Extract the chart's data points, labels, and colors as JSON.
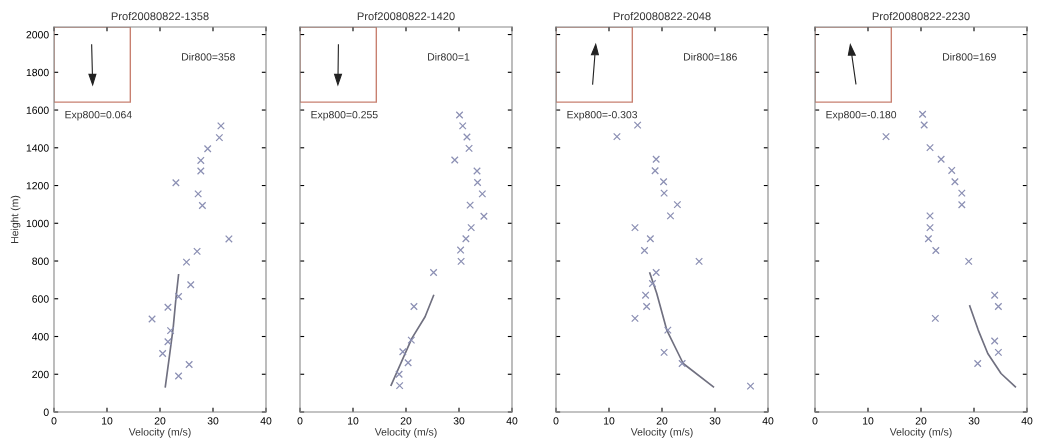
{
  "chart_data": [
    {
      "type": "scatter",
      "title": "Prof20080822-1358",
      "xlabel": "Velocity (m/s)",
      "ylabel": "Height (m)",
      "annotations": [
        "Dir800=358",
        "Exp800=0.064"
      ],
      "xlim": [
        0,
        40
      ],
      "ylim": [
        0,
        2040
      ],
      "xticks": [
        0,
        10,
        20,
        30,
        40
      ],
      "yticks": [
        0,
        200,
        400,
        600,
        800,
        1000,
        1200,
        1400,
        1600,
        1800,
        2000
      ],
      "grid": false,
      "series": [
        {
          "marker": "cross",
          "color": "#8c90b4",
          "x": [
            31.5,
            31.2,
            29,
            27.7,
            27.7,
            23,
            27.2,
            28,
            33,
            27,
            25,
            25.8,
            23.5,
            21.5,
            18.5,
            22,
            21.5,
            20.5,
            25.5,
            23.5
          ],
          "values": [
            1516,
            1454,
            1395,
            1333,
            1277,
            1215,
            1156,
            1094,
            917,
            851,
            794,
            674,
            612,
            555,
            493,
            431,
            372,
            310,
            252,
            191
          ]
        },
        {
          "type": "line",
          "color": "#707080",
          "x": [
            21,
            21.8,
            22.5,
            23,
            23.5
          ],
          "values": [
            133,
            300,
            450,
            600,
            727
          ]
        }
      ]
    },
    {
      "type": "scatter",
      "title": "Prof20080822-1420",
      "xlabel": "Velocity (m/s)",
      "annotations": [
        "Dir800=1",
        "Exp800=0.255"
      ],
      "xlim": [
        0,
        40
      ],
      "ylim": [
        0,
        2040
      ],
      "xticks": [
        0,
        10,
        20,
        30,
        40
      ],
      "yticks": [
        0,
        200,
        400,
        600,
        800,
        1000,
        1200,
        1400,
        1600,
        1800,
        2000
      ],
      "tick_labels": "x",
      "grid": false,
      "series": [
        {
          "marker": "cross",
          "color": "#8c90b4",
          "x": [
            30.1,
            30.7,
            31.5,
            31.9,
            29.2,
            33.4,
            33.5,
            34.4,
            32.1,
            34.7,
            32.3,
            31.3,
            30.3,
            30.4,
            25.2,
            21.5,
            21,
            19.4,
            20.4,
            18.7,
            18.8
          ],
          "values": [
            1574,
            1516,
            1457,
            1397,
            1335,
            1277,
            1216,
            1156,
            1096,
            1037,
            977,
            918,
            858,
            798,
            739,
            559,
            381,
            319,
            261,
            200,
            140
          ]
        },
        {
          "type": "line",
          "color": "#707080",
          "x": [
            17.2,
            21.1,
            23.6,
            25.2
          ],
          "values": [
            142,
            390,
            505,
            617
          ]
        }
      ]
    },
    {
      "type": "scatter",
      "title": "Prof20080822-2048",
      "xlabel": "Velocity (m/s)",
      "annotations": [
        "Dir800=186",
        "Exp800=-0.303"
      ],
      "xlim": [
        0,
        40
      ],
      "ylim": [
        0,
        2040
      ],
      "xticks": [
        0,
        10,
        20,
        30,
        40
      ],
      "yticks": [
        0,
        200,
        400,
        600,
        800,
        1000,
        1200,
        1400,
        1600,
        1800,
        2000
      ],
      "tick_labels": "x",
      "grid": false,
      "series": [
        {
          "marker": "cross",
          "color": "#8c90b4",
          "x": [
            15.4,
            11.5,
            18.9,
            18.7,
            20.3,
            20.4,
            22.9,
            21.6,
            14.9,
            17.8,
            16.7,
            27,
            18.9,
            18.2,
            16.9,
            17.1,
            14.9,
            21.1,
            20.4,
            23.8,
            36.7
          ],
          "values": [
            1520,
            1459,
            1339,
            1278,
            1220,
            1160,
            1099,
            1039,
            977,
            918,
            856,
            798,
            739,
            681,
            619,
            559,
            496,
            434,
            316,
            257,
            137
          ]
        },
        {
          "type": "line",
          "color": "#707080",
          "x": [
            17.7,
            19,
            20.9,
            24,
            29.7
          ],
          "values": [
            736,
            629,
            434,
            257,
            133
          ]
        }
      ]
    },
    {
      "type": "scatter",
      "title": "Prof20080822-2230",
      "xlabel": "Velocity (m/s)",
      "annotations": [
        "Dir800=169",
        "Exp800=-0.180"
      ],
      "xlim": [
        0,
        40
      ],
      "ylim": [
        0,
        2040
      ],
      "xticks": [
        0,
        10,
        20,
        30,
        40
      ],
      "yticks": [
        0,
        200,
        400,
        600,
        800,
        1000,
        1200,
        1400,
        1600,
        1800,
        2000
      ],
      "tick_labels": "x",
      "grid": false,
      "series": [
        {
          "marker": "cross",
          "color": "#8c90b4",
          "x": [
            20.3,
            20.6,
            13.4,
            21.7,
            23.8,
            25.8,
            26.4,
            27.7,
            27.7,
            21.7,
            21.7,
            21.4,
            22.8,
            29,
            33.9,
            34.6,
            22.7,
            33.9,
            34.6,
            30.7
          ],
          "values": [
            1578,
            1521,
            1459,
            1401,
            1339,
            1280,
            1220,
            1160,
            1098,
            1039,
            977,
            918,
            856,
            798,
            619,
            559,
            496,
            376,
            316,
            257
          ]
        },
        {
          "type": "line",
          "color": "#707080",
          "x": [
            29.2,
            30.8,
            32.6,
            35.1,
            37.8
          ],
          "values": [
            562,
            434,
            310,
            204,
            133
          ]
        }
      ]
    }
  ]
}
